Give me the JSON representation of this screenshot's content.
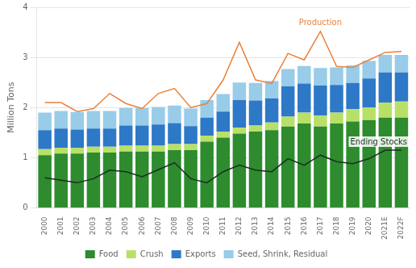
{
  "chart_data": {
    "type": "bar",
    "stacked": true,
    "categories": [
      "2000",
      "2001",
      "2002",
      "2003",
      "2004",
      "2005",
      "2006",
      "2007",
      "2008",
      "2009",
      "2010",
      "2011",
      "2012",
      "2013",
      "2014",
      "2015",
      "2016",
      "2017",
      "2018",
      "2019",
      "2020",
      "2021E",
      "2022F"
    ],
    "ylabel": "Million Tons",
    "ylim": [
      0,
      4.0
    ],
    "yticks": [
      0,
      1,
      2,
      3,
      4
    ],
    "grid": true,
    "legend": "bottom",
    "series": [
      {
        "name": "Food",
        "color": "#2e8b2e",
        "values": [
          1.05,
          1.08,
          1.08,
          1.1,
          1.1,
          1.12,
          1.12,
          1.12,
          1.15,
          1.15,
          1.32,
          1.4,
          1.48,
          1.52,
          1.55,
          1.62,
          1.68,
          1.62,
          1.68,
          1.72,
          1.75,
          1.8,
          1.8
        ]
      },
      {
        "name": "Crush",
        "color": "#b8e068",
        "values": [
          0.12,
          0.12,
          0.12,
          0.12,
          0.12,
          0.12,
          0.12,
          0.12,
          0.12,
          0.12,
          0.12,
          0.12,
          0.12,
          0.12,
          0.15,
          0.2,
          0.22,
          0.22,
          0.22,
          0.25,
          0.25,
          0.3,
          0.32
        ]
      },
      {
        "name": "Exports",
        "color": "#2e78c8",
        "values": [
          0.38,
          0.38,
          0.36,
          0.36,
          0.36,
          0.4,
          0.4,
          0.42,
          0.42,
          0.36,
          0.36,
          0.4,
          0.55,
          0.5,
          0.48,
          0.6,
          0.58,
          0.6,
          0.55,
          0.52,
          0.58,
          0.6,
          0.58
        ]
      },
      {
        "name": "Seed, Shrink, Residual",
        "color": "#98cce8",
        "values": [
          0.35,
          0.35,
          0.35,
          0.35,
          0.35,
          0.35,
          0.35,
          0.35,
          0.35,
          0.35,
          0.35,
          0.35,
          0.35,
          0.35,
          0.35,
          0.35,
          0.35,
          0.35,
          0.35,
          0.35,
          0.35,
          0.35,
          0.35
        ]
      },
      {
        "name": "Production",
        "type": "line",
        "color": "#e8823a",
        "values": [
          2.1,
          2.1,
          1.92,
          1.98,
          2.28,
          2.08,
          1.98,
          2.28,
          2.38,
          2.0,
          2.08,
          2.55,
          3.3,
          2.55,
          2.48,
          3.08,
          2.95,
          3.52,
          2.82,
          2.8,
          2.95,
          3.1,
          3.12
        ]
      },
      {
        "name": "Ending Stocks",
        "type": "line",
        "color": "#1a3020",
        "values": [
          0.6,
          0.55,
          0.5,
          0.58,
          0.75,
          0.72,
          0.62,
          0.76,
          0.9,
          0.58,
          0.5,
          0.72,
          0.85,
          0.75,
          0.72,
          0.98,
          0.85,
          1.05,
          0.92,
          0.88,
          0.98,
          1.15,
          1.15
        ]
      }
    ]
  }
}
